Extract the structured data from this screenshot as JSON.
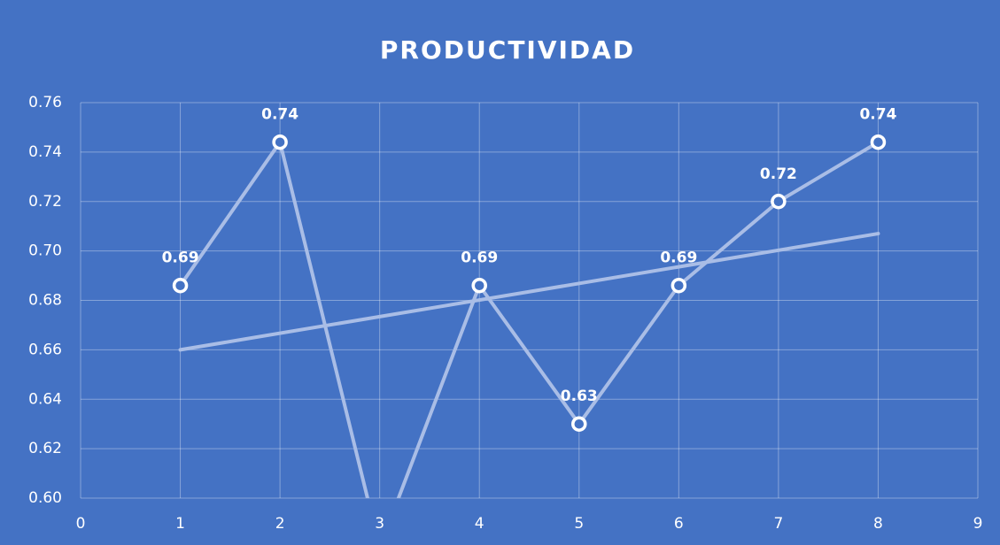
{
  "chart_data": {
    "type": "line",
    "title": "PRODUCTIVIDAD",
    "x": [
      1,
      2,
      3,
      4,
      5,
      6,
      7,
      8
    ],
    "series": [
      {
        "color": "#a9bde6",
        "values": [
          0.686,
          0.744,
          0.58,
          0.686,
          0.63,
          0.686,
          0.72,
          0.744
        ],
        "value_labels": [
          "0.69",
          "0.74",
          null,
          "0.69",
          "0.63",
          "0.69",
          "0.72",
          "0.74"
        ]
      }
    ],
    "trendline": {
      "color": "#a9bde6",
      "x": [
        1,
        8
      ],
      "values": [
        0.66,
        0.707
      ]
    },
    "xlim": [
      0,
      9
    ],
    "xticks": [
      0,
      1,
      2,
      3,
      4,
      5,
      6,
      7,
      8,
      9
    ],
    "ylim": [
      0.6,
      0.76
    ],
    "yticks": [
      {
        "value": 0.6,
        "label": "0.60"
      },
      {
        "value": 0.62,
        "label": "0.62"
      },
      {
        "value": 0.64,
        "label": "0.64"
      },
      {
        "value": 0.66,
        "label": "0.66"
      },
      {
        "value": 0.68,
        "label": "0.68"
      },
      {
        "value": 0.7,
        "label": "0.70"
      },
      {
        "value": 0.72,
        "label": "0.72"
      },
      {
        "value": 0.74,
        "label": "0.74"
      },
      {
        "value": 0.76,
        "label": "0.76"
      }
    ],
    "grid": true,
    "background": "#4472c4"
  }
}
